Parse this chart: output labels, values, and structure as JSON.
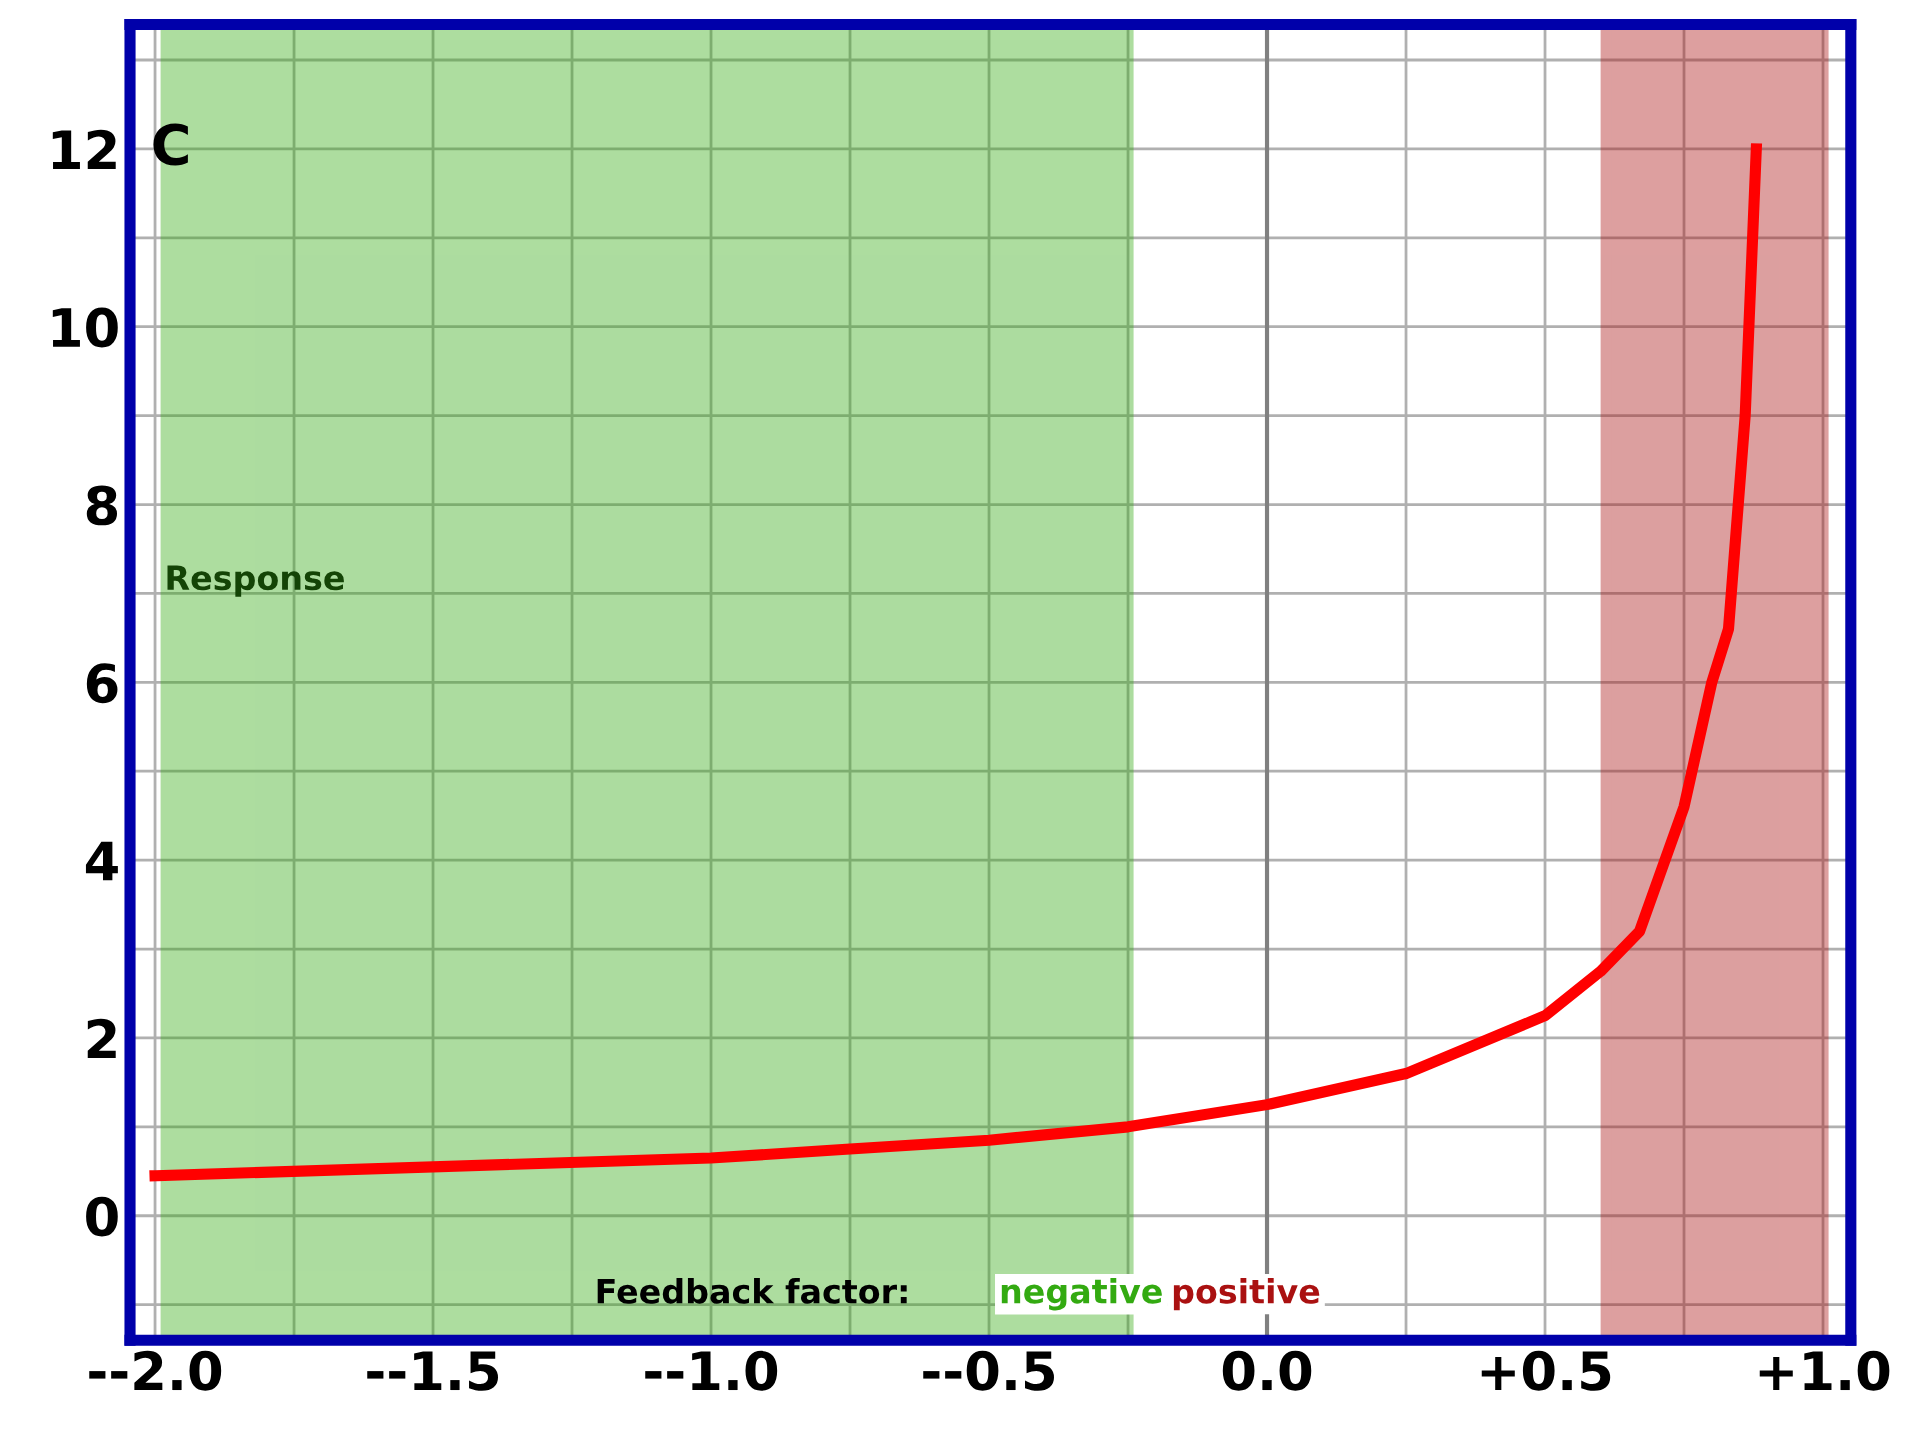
{
  "chart_data": {
    "type": "line",
    "ylabel": "Response",
    "xlabel": "Feedback factor:",
    "x": [
      -2.0,
      -1.5,
      -1.0,
      -0.75,
      -0.5,
      -0.25,
      0.0,
      0.25,
      0.5,
      0.6,
      0.67,
      0.75,
      0.8,
      0.83,
      0.86,
      0.88
    ],
    "series": [
      {
        "color": "#ff0000",
        "values": [
          0.45,
          0.55,
          0.65,
          0.75,
          0.85,
          1.0,
          1.25,
          1.6,
          2.25,
          2.75,
          3.2,
          4.6,
          6.0,
          6.6,
          9.0,
          12.0
        ]
      }
    ],
    "xlim": [
      -2.045,
      1.05
    ],
    "ylim": [
      -1.4,
      13.4
    ],
    "xticks": [
      {
        "value": -2.0,
        "label": "--2.0"
      },
      {
        "value": -1.75,
        "label": null
      },
      {
        "value": -1.5,
        "label": "--1.5"
      },
      {
        "value": -1.25,
        "label": null
      },
      {
        "value": -1.0,
        "label": "--1.0"
      },
      {
        "value": -0.75,
        "label": null
      },
      {
        "value": -0.5,
        "label": "--0.5"
      },
      {
        "value": -0.25,
        "label": null
      },
      {
        "value": 0.0,
        "label": "0.0"
      },
      {
        "value": 0.25,
        "label": null
      },
      {
        "value": 0.5,
        "label": "+0.5"
      },
      {
        "value": 0.75,
        "label": null
      },
      {
        "value": 1.0,
        "label": "+1.0"
      }
    ],
    "yticks": [
      {
        "value": -1,
        "label": null
      },
      0,
      {
        "value": 1,
        "label": null
      },
      2,
      {
        "value": 3,
        "label": null
      },
      4,
      {
        "value": 5,
        "label": null
      },
      6,
      {
        "value": 7,
        "label": null
      },
      8,
      {
        "value": 9,
        "label": null
      },
      10,
      {
        "value": 11,
        "label": null
      },
      12,
      {
        "value": 13,
        "label": null
      }
    ],
    "grid": true,
    "line_style": "solid",
    "marker": "none",
    "ref_lines": [
      {
        "axis": "x",
        "value": 0.0,
        "color": "#808080"
      }
    ],
    "bands": [
      {
        "axis": "x",
        "from": -1.98,
        "to": -0.25,
        "label": "negative",
        "color": "#33aa11"
      },
      {
        "axis": "x",
        "from": 0.61,
        "to": 1.0,
        "label": "positive",
        "color": "#aa1111"
      }
    ],
    "annotations": [
      "C"
    ]
  }
}
